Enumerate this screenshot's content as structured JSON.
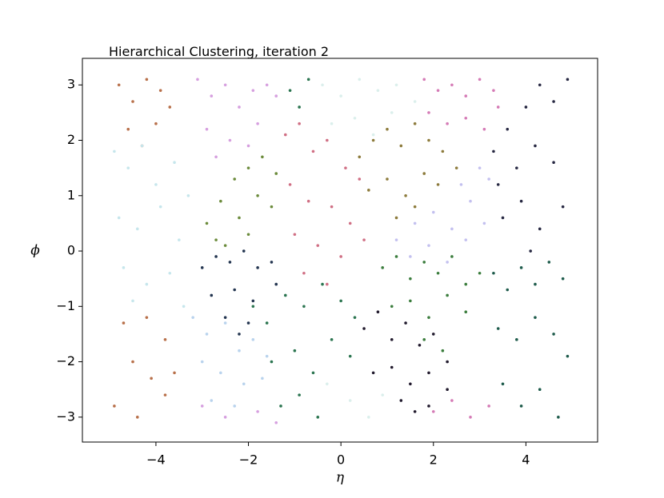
{
  "chart_data": {
    "type": "scatter",
    "title": "Hierarchical Clustering, iteration 2",
    "xlabel": "η",
    "ylabel": "ϕ",
    "xlim": [
      -5.59,
      5.55
    ],
    "ylim": [
      -3.45,
      3.48
    ],
    "xticks": [
      {
        "value": -4,
        "label": "−4"
      },
      {
        "value": -2,
        "label": "−2"
      },
      0,
      2,
      4
    ],
    "yticks": [
      {
        "value": -3,
        "label": "−3"
      },
      {
        "value": -2,
        "label": "−2"
      },
      {
        "value": -1,
        "label": "−1"
      },
      0,
      1,
      2,
      3
    ],
    "series": [
      {
        "color": "#b8704a",
        "x": [
          -4.8,
          -4.5,
          -4.2,
          -3.9,
          -3.7,
          -4.6,
          -4.0,
          -4.3,
          -4.7,
          -3.8,
          -4.5,
          -4.1,
          -3.8,
          -4.9,
          -4.4,
          -3.6,
          -4.2
        ],
        "y": [
          3.0,
          2.7,
          3.1,
          2.9,
          2.6,
          2.2,
          2.3,
          1.9,
          -1.3,
          -1.6,
          -2.0,
          -2.3,
          -2.6,
          -2.8,
          -3.0,
          -2.2,
          -1.2
        ]
      },
      {
        "color": "#c6e6ec",
        "x": [
          -4.9,
          -4.6,
          -4.3,
          -4.0,
          -3.6,
          -3.3,
          -4.8,
          -4.4,
          -3.9,
          -3.5,
          -4.7,
          -4.2,
          -3.7,
          -4.5,
          -3.4
        ],
        "y": [
          1.8,
          1.5,
          1.9,
          1.2,
          1.6,
          1.0,
          0.6,
          0.4,
          0.8,
          0.2,
          -0.3,
          -0.6,
          -0.4,
          -0.9,
          -1.0
        ]
      },
      {
        "color": "#d69fdf",
        "x": [
          -3.1,
          -2.8,
          -2.5,
          -2.2,
          -1.9,
          -1.6,
          -2.9,
          -2.4,
          -1.8,
          -1.4,
          -2.7,
          -2.0,
          -3.0,
          -2.5,
          -1.8,
          -1.4
        ],
        "y": [
          3.1,
          2.8,
          3.0,
          2.6,
          2.9,
          3.0,
          2.2,
          2.0,
          2.3,
          2.8,
          1.7,
          1.9,
          -2.8,
          -3.0,
          -2.9,
          -3.1
        ]
      },
      {
        "color": "#6b8b3b",
        "x": [
          -2.9,
          -2.6,
          -2.3,
          -2.0,
          -1.7,
          -1.4,
          -2.7,
          -2.2,
          -1.8,
          -2.5,
          -2.0,
          -1.5
        ],
        "y": [
          0.5,
          0.9,
          1.3,
          1.5,
          1.7,
          1.4,
          0.2,
          0.6,
          1.0,
          0.1,
          0.3,
          0.8
        ]
      },
      {
        "color": "#233550",
        "x": [
          -3.0,
          -2.7,
          -2.4,
          -2.1,
          -1.8,
          -1.5,
          -2.8,
          -2.3,
          -1.9,
          -1.4,
          -2.5,
          -2.0,
          -2.2
        ],
        "y": [
          -0.3,
          -0.1,
          -0.2,
          0.0,
          -0.3,
          -0.2,
          -0.8,
          -0.7,
          -0.9,
          -0.6,
          -1.2,
          -1.3,
          -1.5
        ]
      },
      {
        "color": "#b9d3ed",
        "x": [
          -3.2,
          -2.9,
          -2.5,
          -2.2,
          -1.9,
          -1.6,
          -3.0,
          -2.6,
          -2.1,
          -1.7,
          -2.8,
          -2.3
        ],
        "y": [
          -1.2,
          -1.5,
          -1.3,
          -1.8,
          -1.6,
          -1.9,
          -2.0,
          -2.2,
          -2.4,
          -2.3,
          -2.7,
          -2.8
        ]
      },
      {
        "color": "#2b7550",
        "x": [
          -1.9,
          -1.6,
          -1.2,
          -0.8,
          -0.4,
          0.0,
          0.3,
          -1.5,
          -1.0,
          -0.6,
          -0.2,
          0.2,
          -1.3,
          -0.9,
          -0.5,
          -0.9,
          -0.7,
          -1.1
        ],
        "y": [
          -1.0,
          -1.3,
          -0.8,
          -1.0,
          -0.6,
          -0.9,
          -1.2,
          -2.0,
          -1.8,
          -2.2,
          -1.6,
          -1.9,
          -2.8,
          -2.6,
          -3.0,
          2.6,
          3.1,
          2.9
        ]
      },
      {
        "color": "#d06f84",
        "x": [
          -1.2,
          -0.9,
          -0.6,
          -0.3,
          0.1,
          0.4,
          -1.1,
          -0.7,
          -0.2,
          0.2,
          -1.0,
          -0.5,
          0.0,
          0.5,
          -0.8,
          -0.3
        ],
        "y": [
          2.1,
          2.3,
          1.8,
          2.0,
          1.5,
          1.3,
          1.2,
          0.9,
          0.8,
          0.5,
          0.3,
          0.1,
          -0.1,
          0.2,
          -0.4,
          -0.6
        ]
      },
      {
        "color": "#dbefec",
        "x": [
          -0.4,
          0.0,
          0.4,
          0.8,
          1.2,
          1.6,
          -0.2,
          0.3,
          0.7,
          1.1,
          -0.3,
          0.2,
          0.6,
          0.9
        ],
        "y": [
          3.0,
          2.8,
          3.1,
          2.9,
          3.0,
          2.7,
          2.3,
          2.4,
          2.1,
          2.5,
          -2.4,
          -2.7,
          -3.0,
          -2.6
        ]
      },
      {
        "color": "#8d7b3c",
        "x": [
          0.4,
          0.7,
          1.0,
          1.3,
          1.6,
          1.9,
          2.2,
          2.5,
          0.6,
          1.0,
          1.4,
          1.8,
          2.1,
          1.2,
          1.6
        ],
        "y": [
          1.7,
          2.0,
          2.2,
          1.9,
          2.3,
          2.0,
          1.8,
          1.5,
          1.1,
          1.3,
          1.0,
          1.4,
          1.2,
          0.6,
          0.8
        ]
      },
      {
        "color": "#d57bb6",
        "x": [
          1.8,
          2.1,
          2.4,
          2.7,
          3.0,
          3.3,
          1.9,
          2.3,
          2.7,
          3.1,
          3.4,
          2.0,
          2.4,
          2.8,
          3.2
        ],
        "y": [
          3.1,
          2.9,
          3.0,
          2.8,
          3.1,
          2.9,
          2.5,
          2.3,
          2.4,
          2.2,
          2.6,
          -2.9,
          -2.7,
          -3.0,
          -2.8
        ]
      },
      {
        "color": "#c3c0ef",
        "x": [
          1.2,
          1.6,
          2.0,
          2.4,
          2.8,
          3.2,
          1.5,
          1.9,
          2.3,
          2.7,
          3.1,
          2.6,
          3.0
        ],
        "y": [
          0.2,
          0.5,
          0.7,
          0.4,
          0.9,
          1.3,
          -0.1,
          0.1,
          -0.2,
          0.2,
          0.5,
          1.2,
          1.5
        ]
      },
      {
        "color": "#3b7d3d",
        "x": [
          0.9,
          1.2,
          1.5,
          1.8,
          2.1,
          2.4,
          2.7,
          3.0,
          1.1,
          1.5,
          1.9,
          2.3,
          2.7,
          1.8,
          2.2
        ],
        "y": [
          -0.3,
          -0.1,
          -0.5,
          -0.2,
          -0.4,
          -0.1,
          -0.6,
          -0.4,
          -1.0,
          -0.9,
          -1.2,
          -0.8,
          -1.1,
          -1.6,
          -1.8
        ]
      },
      {
        "color": "#211a2d",
        "x": [
          0.5,
          0.8,
          1.1,
          1.4,
          1.7,
          2.0,
          2.3,
          0.7,
          1.1,
          1.5,
          1.9,
          2.3,
          1.3,
          1.6,
          1.9
        ],
        "y": [
          -1.4,
          -1.1,
          -1.6,
          -1.3,
          -1.7,
          -1.5,
          -2.0,
          -2.2,
          -2.1,
          -2.4,
          -2.2,
          -2.5,
          -2.7,
          -2.9,
          -2.8
        ]
      },
      {
        "color": "#1e5b4b",
        "x": [
          3.3,
          3.6,
          3.9,
          4.2,
          4.5,
          4.8,
          3.4,
          3.8,
          4.2,
          4.6,
          4.9,
          3.5,
          3.9,
          4.3,
          4.7
        ],
        "y": [
          -0.4,
          -0.7,
          -0.3,
          -0.6,
          -0.2,
          -0.5,
          -1.4,
          -1.6,
          -1.2,
          -1.5,
          -1.9,
          -2.4,
          -2.8,
          -2.5,
          -3.0
        ]
      },
      {
        "color": "#272842",
        "x": [
          3.3,
          3.6,
          4.0,
          4.3,
          4.6,
          4.9,
          3.4,
          3.8,
          4.2,
          4.6,
          3.5,
          3.9,
          4.3,
          4.8,
          4.1
        ],
        "y": [
          1.8,
          2.2,
          2.6,
          3.0,
          2.7,
          3.1,
          1.2,
          1.5,
          1.9,
          1.6,
          0.6,
          0.9,
          0.4,
          0.8,
          0.0
        ]
      }
    ]
  }
}
